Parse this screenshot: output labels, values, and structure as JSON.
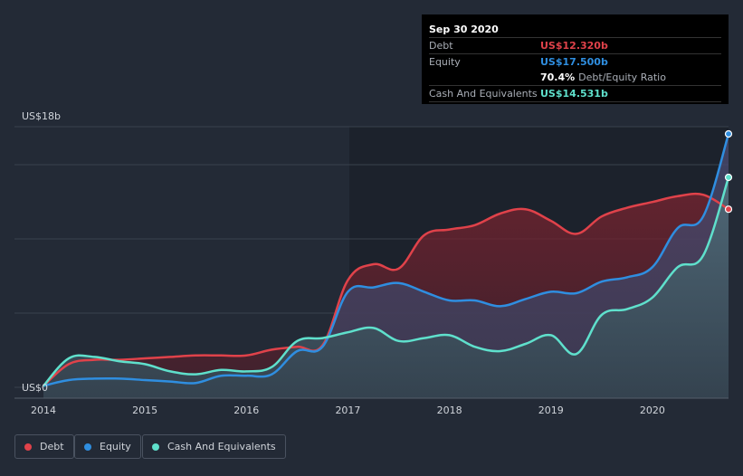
{
  "chart_data": {
    "type": "area",
    "y_unit_label_top": "US$18b",
    "y_unit_label_bottom": "US$0",
    "ylim": [
      0,
      18
    ],
    "xlim": [
      2014.0,
      2020.75
    ],
    "x_ticks": [
      {
        "value": 2014,
        "label": "2014"
      },
      {
        "value": 2015,
        "label": "2015"
      },
      {
        "value": 2016,
        "label": "2016"
      },
      {
        "value": 2017,
        "label": "2017"
      },
      {
        "value": 2018,
        "label": "2018"
      },
      {
        "value": 2019,
        "label": "2019"
      },
      {
        "value": 2020,
        "label": "2020"
      }
    ],
    "series": [
      {
        "name": "Debt",
        "color": "#e0424a",
        "points": [
          [
            2014.0,
            0.1
          ],
          [
            2014.25,
            1.6
          ],
          [
            2014.5,
            1.9
          ],
          [
            2014.75,
            1.9
          ],
          [
            2015.0,
            2.0
          ],
          [
            2015.25,
            2.1
          ],
          [
            2015.5,
            2.2
          ],
          [
            2015.75,
            2.2
          ],
          [
            2016.0,
            2.2
          ],
          [
            2016.25,
            2.6
          ],
          [
            2016.5,
            2.8
          ],
          [
            2016.75,
            2.9
          ],
          [
            2017.0,
            7.4
          ],
          [
            2017.25,
            8.5
          ],
          [
            2017.5,
            8.2
          ],
          [
            2017.75,
            10.5
          ],
          [
            2018.0,
            10.9
          ],
          [
            2018.25,
            11.2
          ],
          [
            2018.5,
            12.0
          ],
          [
            2018.75,
            12.3
          ],
          [
            2019.0,
            11.5
          ],
          [
            2019.25,
            10.6
          ],
          [
            2019.5,
            11.8
          ],
          [
            2019.75,
            12.4
          ],
          [
            2020.0,
            12.8
          ],
          [
            2020.25,
            13.2
          ],
          [
            2020.5,
            13.3
          ],
          [
            2020.75,
            12.3
          ]
        ]
      },
      {
        "name": "Equity",
        "color": "#2f8ee0",
        "points": [
          [
            2014.0,
            0.1
          ],
          [
            2014.25,
            0.5
          ],
          [
            2014.5,
            0.6
          ],
          [
            2014.75,
            0.6
          ],
          [
            2015.0,
            0.5
          ],
          [
            2015.25,
            0.4
          ],
          [
            2015.5,
            0.3
          ],
          [
            2015.75,
            0.8
          ],
          [
            2016.0,
            0.8
          ],
          [
            2016.25,
            0.9
          ],
          [
            2016.5,
            2.5
          ],
          [
            2016.75,
            2.8
          ],
          [
            2017.0,
            6.6
          ],
          [
            2017.25,
            6.9
          ],
          [
            2017.5,
            7.2
          ],
          [
            2017.75,
            6.6
          ],
          [
            2018.0,
            6.0
          ],
          [
            2018.25,
            6.0
          ],
          [
            2018.5,
            5.6
          ],
          [
            2018.75,
            6.1
          ],
          [
            2019.0,
            6.6
          ],
          [
            2019.25,
            6.5
          ],
          [
            2019.5,
            7.3
          ],
          [
            2019.75,
            7.6
          ],
          [
            2020.0,
            8.3
          ],
          [
            2020.25,
            11.0
          ],
          [
            2020.5,
            11.8
          ],
          [
            2020.75,
            17.5
          ]
        ]
      },
      {
        "name": "Cash And Equivalents",
        "color": "#5fe0cc",
        "points": [
          [
            2014.0,
            0.1
          ],
          [
            2014.25,
            2.0
          ],
          [
            2014.5,
            2.1
          ],
          [
            2014.75,
            1.8
          ],
          [
            2015.0,
            1.6
          ],
          [
            2015.25,
            1.1
          ],
          [
            2015.5,
            0.9
          ],
          [
            2015.75,
            1.2
          ],
          [
            2016.0,
            1.1
          ],
          [
            2016.25,
            1.4
          ],
          [
            2016.5,
            3.2
          ],
          [
            2016.75,
            3.4
          ],
          [
            2017.0,
            3.8
          ],
          [
            2017.25,
            4.1
          ],
          [
            2017.5,
            3.2
          ],
          [
            2017.75,
            3.4
          ],
          [
            2018.0,
            3.6
          ],
          [
            2018.25,
            2.8
          ],
          [
            2018.5,
            2.5
          ],
          [
            2018.75,
            3.0
          ],
          [
            2019.0,
            3.6
          ],
          [
            2019.25,
            2.3
          ],
          [
            2019.5,
            5.0
          ],
          [
            2019.75,
            5.4
          ],
          [
            2020.0,
            6.2
          ],
          [
            2020.25,
            8.3
          ],
          [
            2020.5,
            9.1
          ],
          [
            2020.75,
            14.5
          ]
        ]
      }
    ]
  },
  "tooltip": {
    "date": "Sep 30 2020",
    "debt_label": "Debt",
    "debt_value": "US$12.320b",
    "equity_label": "Equity",
    "equity_value": "US$17.500b",
    "ratio_value": "70.4%",
    "ratio_label": "Debt/Equity Ratio",
    "cash_label": "Cash And Equivalents",
    "cash_value": "US$14.531b"
  },
  "legend": {
    "debt": "Debt",
    "equity": "Equity",
    "cash": "Cash And Equivalents"
  },
  "colors": {
    "background": "#232a36",
    "debt": "#e0424a",
    "equity": "#2f8ee0",
    "cash": "#5fe0cc"
  }
}
